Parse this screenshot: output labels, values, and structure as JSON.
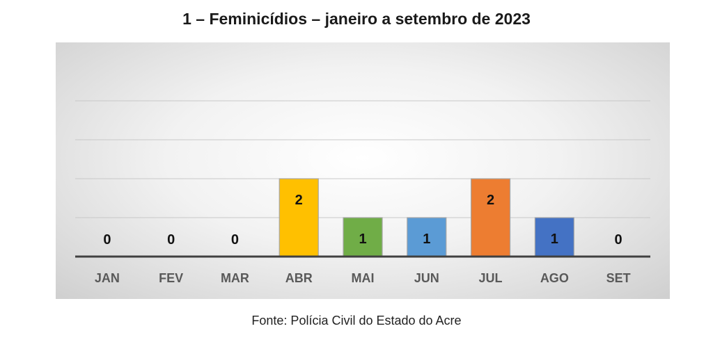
{
  "chart_data": {
    "type": "bar",
    "title": "1 – Feminicídios – janeiro a setembro de 2023",
    "categories": [
      "JAN",
      "FEV",
      "MAR",
      "ABR",
      "MAI",
      "JUN",
      "JUL",
      "AGO",
      "SET"
    ],
    "values": [
      0,
      0,
      0,
      2,
      1,
      1,
      2,
      1,
      0
    ],
    "colors": [
      "#ffc000",
      "#ffc000",
      "#ffc000",
      "#ffc000",
      "#70ad47",
      "#5b9bd5",
      "#ed7d31",
      "#4472c4",
      "#ffc000"
    ],
    "xlabel": "",
    "ylabel": "",
    "ylim": [
      0,
      4
    ],
    "grid": true,
    "legend": "none",
    "data_labels": true
  },
  "source_note": "Fonte: Polícia Civil do Estado do Acre"
}
